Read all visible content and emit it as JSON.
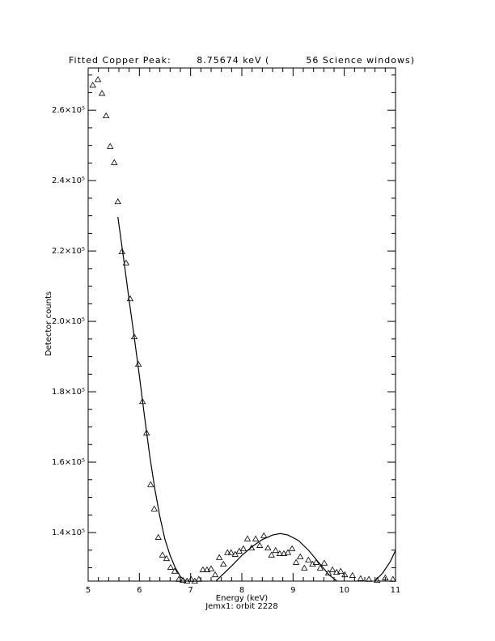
{
  "chart_data": {
    "type": "scatter",
    "title": "Fitted Copper Peak:       8.75674 keV (          56 Science windows)",
    "x_label": "Energy (keV)",
    "subtitle": "Jemx1: orbit 2228",
    "y_label": "Detector counts",
    "xlim": [
      5,
      11
    ],
    "xticks": [
      5,
      6,
      7,
      8,
      9,
      10,
      11
    ],
    "ylim": [
      126200,
      272000
    ],
    "yticks": [
      {
        "value": 140000,
        "label": "1.4×10⁵"
      },
      {
        "value": 160000,
        "label": "1.6×10⁵"
      },
      {
        "value": 180000,
        "label": "1.8×10⁵"
      },
      {
        "value": 200000,
        "label": "2.0×10⁵"
      },
      {
        "value": 220000,
        "label": "2.2×10⁵"
      },
      {
        "value": 240000,
        "label": "2.4×10⁵"
      },
      {
        "value": 260000,
        "label": "2.6×10⁵"
      }
    ],
    "series": [
      {
        "type": "scatter",
        "color": "#000000",
        "x": [
          5.09,
          5.19,
          5.27,
          5.35,
          5.43,
          5.51,
          5.58,
          5.66,
          5.74,
          5.82,
          5.9,
          5.98,
          6.06,
          6.14,
          6.22,
          6.29,
          6.37,
          6.45,
          6.53,
          6.61,
          6.69,
          6.77,
          6.85,
          6.93,
          7.01,
          7.08,
          7.16,
          7.24,
          7.32,
          7.4,
          7.48,
          7.56,
          7.64,
          7.72,
          7.79,
          7.87,
          7.95,
          8.03,
          8.11,
          8.19,
          8.27,
          8.35,
          8.43,
          8.51,
          8.58,
          8.66,
          8.74,
          8.82,
          8.9,
          8.98,
          9.06,
          9.14,
          9.22,
          9.3,
          9.38,
          9.45,
          9.53,
          9.61,
          9.69,
          9.77,
          9.85,
          9.93,
          10.01,
          10.16,
          10.32,
          10.48,
          10.64,
          10.8,
          10.95
        ],
        "values": [
          267100,
          268700,
          264800,
          258400,
          249700,
          245100,
          234000,
          219800,
          216600,
          206400,
          195600,
          187800,
          177200,
          168300,
          153600,
          146700,
          138600,
          133600,
          132600,
          130100,
          129000,
          126700,
          126400,
          126200,
          126700,
          126200,
          126700,
          129400,
          129400,
          129700,
          128000,
          132900,
          131000,
          134300,
          134300,
          133800,
          134700,
          135400,
          138200,
          135600,
          138200,
          136300,
          139100,
          135600,
          133600,
          134900,
          134000,
          134000,
          134300,
          135400,
          131500,
          133100,
          129900,
          132200,
          131000,
          131500,
          129900,
          131300,
          128500,
          129400,
          128700,
          129000,
          128000,
          127800,
          126900,
          126700,
          126400,
          127100,
          126700
        ]
      },
      {
        "type": "line",
        "color": "#000000",
        "x": [
          5.58,
          5.7,
          5.8,
          5.9,
          6.0,
          6.1,
          6.2,
          6.3,
          6.4,
          6.5,
          6.6,
          6.7,
          6.8,
          6.9,
          7.2,
          7.5,
          7.6,
          7.8,
          8.0,
          8.2,
          8.4,
          8.6,
          8.75,
          8.9,
          9.1,
          9.3,
          9.5,
          9.7,
          9.85,
          10.3,
          10.6,
          10.75,
          10.9,
          11
        ],
        "values": [
          229700,
          217000,
          206000,
          195500,
          184500,
          173000,
          162000,
          152500,
          144500,
          138000,
          133500,
          130000,
          127500,
          126300,
          null,
          126300,
          127700,
          130500,
          133500,
          136000,
          138000,
          139300,
          139700,
          139300,
          137800,
          135000,
          131500,
          128000,
          126300,
          null,
          126300,
          128500,
          131800,
          134900
        ]
      }
    ]
  }
}
